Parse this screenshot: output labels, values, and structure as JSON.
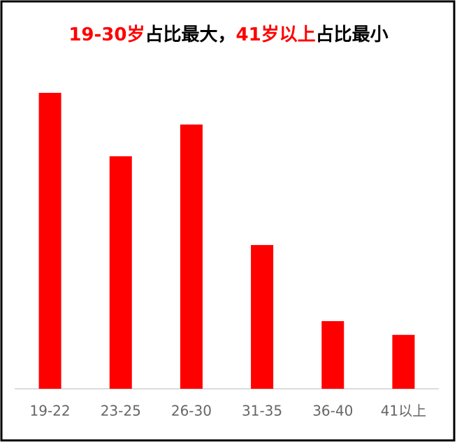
{
  "chart_data": {
    "type": "bar",
    "title_parts": [
      {
        "text": "19-30岁",
        "color": "#ff0000"
      },
      {
        "text": "占比最大，",
        "color": "#000000"
      },
      {
        "text": "41岁以上",
        "color": "#ff0000"
      },
      {
        "text": "占比最小",
        "color": "#000000"
      }
    ],
    "categories": [
      "19-22",
      "23-25",
      "26-30",
      "31-35",
      "36-40",
      "41以上"
    ],
    "values": [
      28,
      22,
      25,
      13.6,
      6.4,
      5.1
    ],
    "color": "#ff0000",
    "ylim": [
      0,
      28
    ]
  }
}
